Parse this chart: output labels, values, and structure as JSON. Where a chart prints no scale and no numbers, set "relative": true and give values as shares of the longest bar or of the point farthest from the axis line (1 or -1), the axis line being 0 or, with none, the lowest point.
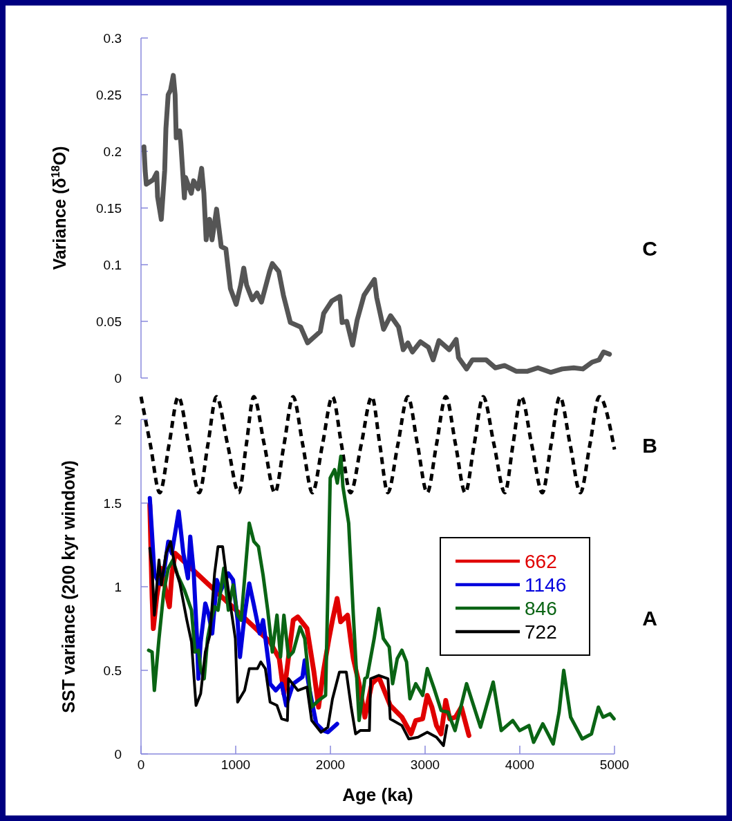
{
  "chart_data": [
    {
      "type": "line",
      "annotations": [
        "C"
      ],
      "ylabel": "Variance (δ$^{18}$O)",
      "xlim": [
        0,
        5000
      ],
      "ylim": [
        0,
        0.3
      ],
      "yticks": [
        0,
        0.05,
        0.1,
        0.15,
        0.2,
        0.25,
        0.3
      ],
      "tick_labels": "y",
      "series": [
        {
          "color": "#555555",
          "x": [
            31,
            44,
            56,
            129,
            166,
            175,
            214,
            250,
            263,
            287,
            312,
            341,
            360,
            372,
            409,
            421,
            458,
            470,
            531,
            555,
            604,
            640,
            664,
            688,
            725,
            750,
            798,
            847,
            896,
            944,
            1005,
            1053,
            1085,
            1115,
            1175,
            1224,
            1272,
            1358,
            1387,
            1455,
            1504,
            1577,
            1686,
            1759,
            1893,
            1929,
            2015,
            2100,
            2124,
            2173,
            2234,
            2282,
            2355,
            2465,
            2489,
            2562,
            2635,
            2720,
            2769,
            2818,
            2866,
            2951,
            3036,
            3085,
            3146,
            3255,
            3328,
            3353,
            3438,
            3499,
            3645,
            3742,
            3839,
            3961,
            4082,
            4191,
            4326,
            4447,
            4569,
            4666,
            4764,
            4837,
            4885,
            4947
          ],
          "values": [
            0.204,
            0.183,
            0.171,
            0.175,
            0.181,
            0.16,
            0.14,
            0.183,
            0.22,
            0.25,
            0.254,
            0.267,
            0.25,
            0.212,
            0.218,
            0.207,
            0.159,
            0.177,
            0.163,
            0.174,
            0.167,
            0.185,
            0.163,
            0.122,
            0.14,
            0.122,
            0.149,
            0.116,
            0.114,
            0.079,
            0.065,
            0.082,
            0.097,
            0.082,
            0.069,
            0.075,
            0.067,
            0.094,
            0.101,
            0.094,
            0.073,
            0.049,
            0.045,
            0.031,
            0.041,
            0.057,
            0.068,
            0.072,
            0.049,
            0.05,
            0.029,
            0.051,
            0.073,
            0.087,
            0.071,
            0.043,
            0.055,
            0.045,
            0.025,
            0.031,
            0.023,
            0.032,
            0.027,
            0.016,
            0.033,
            0.025,
            0.034,
            0.018,
            0.008,
            0.016,
            0.016,
            0.009,
            0.011,
            0.006,
            0.006,
            0.009,
            0.005,
            0.008,
            0.009,
            0.008,
            0.014,
            0.016,
            0.023,
            0.021
          ]
        }
      ]
    },
    {
      "type": "line",
      "annotations": [
        "B"
      ],
      "relative": true,
      "xlim": [
        0,
        5000
      ],
      "tick_labels": false,
      "line_style": "dashed",
      "series": [
        {
          "color": "#000000",
          "x": [
            0,
            99,
            198,
            296,
            394,
            505,
            615,
            706,
            796,
            915,
            1033,
            1112,
            1190,
            1302,
            1414,
            1510,
            1606,
            1708,
            1810,
            1916,
            2022,
            2117,
            2212,
            2325,
            2438,
            2522,
            2606,
            2712,
            2818,
            2920,
            3022,
            3120,
            3219,
            3322,
            3424,
            3518,
            3613,
            3728,
            3842,
            3928,
            4015,
            4126,
            4238,
            4330,
            4423,
            4532,
            4640,
            4740,
            4839,
            5000
          ],
          "values": [
            1,
            0.5,
            0,
            0.5,
            1,
            0.5,
            0,
            0.5,
            1,
            0.5,
            0,
            0.5,
            1,
            0.5,
            0,
            0.5,
            1,
            0.5,
            0,
            0.5,
            1,
            0.5,
            0,
            0.5,
            1,
            0.5,
            0,
            0.5,
            1,
            0.5,
            0,
            0.5,
            1,
            0.5,
            0,
            0.5,
            1,
            0.5,
            0,
            0.5,
            1,
            0.5,
            0,
            0.5,
            1,
            0.5,
            0,
            0.5,
            1,
            0.45
          ]
        }
      ]
    },
    {
      "type": "line",
      "annotations": [
        "A"
      ],
      "xlabel": "Age (ka)",
      "ylabel": "SST variance (200 kyr window)",
      "xlim": [
        0,
        5000
      ],
      "xticks": [
        0,
        1000,
        2000,
        3000,
        4000,
        5000
      ],
      "ylim": [
        0,
        2
      ],
      "yticks": [
        0,
        0.5,
        1,
        1.5,
        2
      ],
      "legend": "right",
      "series": [
        {
          "name": "662",
          "color": "#e00000",
          "x": [
            93,
            117,
            130,
            166,
            215,
            264,
            300,
            325,
            361,
            1363,
            1460,
            1509,
            1607,
            1656,
            1753,
            1826,
            1875,
            1925,
            1985,
            2022,
            2071,
            2108,
            2181,
            2217,
            2242,
            2303,
            2364,
            2437,
            2511,
            2632,
            2755,
            2852,
            2901,
            2974,
            3023,
            3072,
            3120,
            3169,
            3218,
            3260,
            3321,
            3383,
            3463
          ],
          "values": [
            1.49,
            0.94,
            0.75,
            0.94,
            1.11,
            0.97,
            0.88,
            1.07,
            1.2,
            0.67,
            0.57,
            0.36,
            0.8,
            0.82,
            0.75,
            0.49,
            0.28,
            0.49,
            0.69,
            0.8,
            0.93,
            0.79,
            0.83,
            0.67,
            0.57,
            0.42,
            0.22,
            0.42,
            0.46,
            0.29,
            0.22,
            0.12,
            0.2,
            0.21,
            0.35,
            0.28,
            0.17,
            0.12,
            0.32,
            0.21,
            0.22,
            0.28,
            0.11
          ]
        },
        {
          "name": "1146",
          "color": "#0000dd",
          "x": [
            93,
            117,
            141,
            190,
            240,
            288,
            325,
            398,
            447,
            496,
            520,
            557,
            593,
            606,
            630,
            679,
            716,
            752,
            801,
            837,
            923,
            972,
            1020,
            1045,
            1094,
            1143,
            1192,
            1253,
            1289,
            1350,
            1363,
            1423,
            1485,
            1533,
            1607,
            1705,
            1729,
            1778,
            1851,
            1925,
            1973,
            2071
          ],
          "values": [
            1.53,
            1.31,
            1.08,
            1.02,
            1.08,
            1.27,
            1.2,
            1.45,
            1.2,
            1.05,
            1.3,
            1.08,
            0.67,
            0.45,
            0.67,
            0.9,
            0.83,
            0.72,
            1.04,
            0.97,
            1.08,
            1.04,
            0.8,
            0.58,
            0.83,
            1.02,
            0.89,
            0.72,
            0.8,
            0.53,
            0.42,
            0.38,
            0.42,
            0.29,
            0.42,
            0.46,
            0.56,
            0.39,
            0.18,
            0.14,
            0.13,
            0.18
          ]
        },
        {
          "name": "846",
          "color": "#0a6414",
          "x": [
            81,
            117,
            141,
            190,
            240,
            288,
            337,
            386,
            459,
            533,
            569,
            606,
            630,
            667,
            703,
            740,
            777,
            813,
            874,
            923,
            972,
            1020,
            1057,
            1094,
            1143,
            1192,
            1240,
            1289,
            1338,
            1387,
            1436,
            1473,
            1509,
            1558,
            1607,
            1680,
            1729,
            1802,
            1875,
            1949,
            1973,
            1998,
            2044,
            2073,
            2110,
            2132,
            2193,
            2242,
            2303,
            2364,
            2388,
            2462,
            2511,
            2559,
            2621,
            2657,
            2706,
            2755,
            2804,
            2840,
            2901,
            2974,
            3023,
            3096,
            3169,
            3242,
            3316,
            3438,
            3585,
            3719,
            3804,
            3926,
            3999,
            4097,
            4146,
            4243,
            4353,
            4415,
            4464,
            4537,
            4659,
            4757,
            4830,
            4879,
            4952,
            4995
          ],
          "values": [
            0.62,
            0.61,
            0.38,
            0.69,
            0.97,
            1.11,
            1.16,
            1.07,
            0.98,
            0.86,
            0.61,
            0.62,
            0.51,
            0.45,
            0.69,
            0.8,
            0.88,
            0.86,
            1.11,
            0.86,
            1.01,
            0.83,
            0.8,
            1.05,
            1.38,
            1.27,
            1.24,
            1.07,
            0.86,
            0.61,
            0.83,
            0.58,
            0.83,
            0.58,
            0.61,
            0.76,
            0.69,
            0.28,
            0.32,
            0.35,
            0.97,
            1.65,
            1.7,
            1.62,
            1.78,
            1.6,
            1.38,
            0.83,
            0.2,
            0.45,
            0.46,
            0.69,
            0.87,
            0.69,
            0.64,
            0.42,
            0.57,
            0.62,
            0.55,
            0.33,
            0.42,
            0.35,
            0.51,
            0.39,
            0.26,
            0.25,
            0.14,
            0.42,
            0.16,
            0.43,
            0.14,
            0.2,
            0.14,
            0.17,
            0.07,
            0.18,
            0.06,
            0.25,
            0.5,
            0.22,
            0.09,
            0.12,
            0.28,
            0.22,
            0.24,
            0.21
          ]
        },
        {
          "name": "722",
          "color": "#000000",
          "x": [
            93,
            117,
            141,
            166,
            190,
            215,
            264,
            313,
            361,
            410,
            484,
            533,
            581,
            630,
            679,
            727,
            777,
            813,
            862,
            898,
            947,
            996,
            1020,
            1094,
            1143,
            1229,
            1265,
            1313,
            1363,
            1436,
            1485,
            1546,
            1558,
            1656,
            1753,
            1802,
            1900,
            1973,
            2022,
            2095,
            2168,
            2217,
            2266,
            2315,
            2412,
            2425,
            2511,
            2608,
            2632,
            2755,
            2828,
            2925,
            3023,
            3120,
            3194,
            3231
          ],
          "values": [
            1.23,
            1.11,
            0.83,
            1,
            1.16,
            1.01,
            1.2,
            1.27,
            1.11,
            1.02,
            0.8,
            0.67,
            0.29,
            0.36,
            0.61,
            0.71,
            1.08,
            1.24,
            1.24,
            1.08,
            0.88,
            0.69,
            0.31,
            0.38,
            0.51,
            0.51,
            0.55,
            0.51,
            0.31,
            0.29,
            0.21,
            0.2,
            0.45,
            0.38,
            0.4,
            0.2,
            0.13,
            0.16,
            0.33,
            0.49,
            0.49,
            0.29,
            0.12,
            0.14,
            0.14,
            0.45,
            0.47,
            0.45,
            0.21,
            0.17,
            0.09,
            0.1,
            0.13,
            0.1,
            0.05,
            0.17
          ]
        }
      ]
    }
  ]
}
